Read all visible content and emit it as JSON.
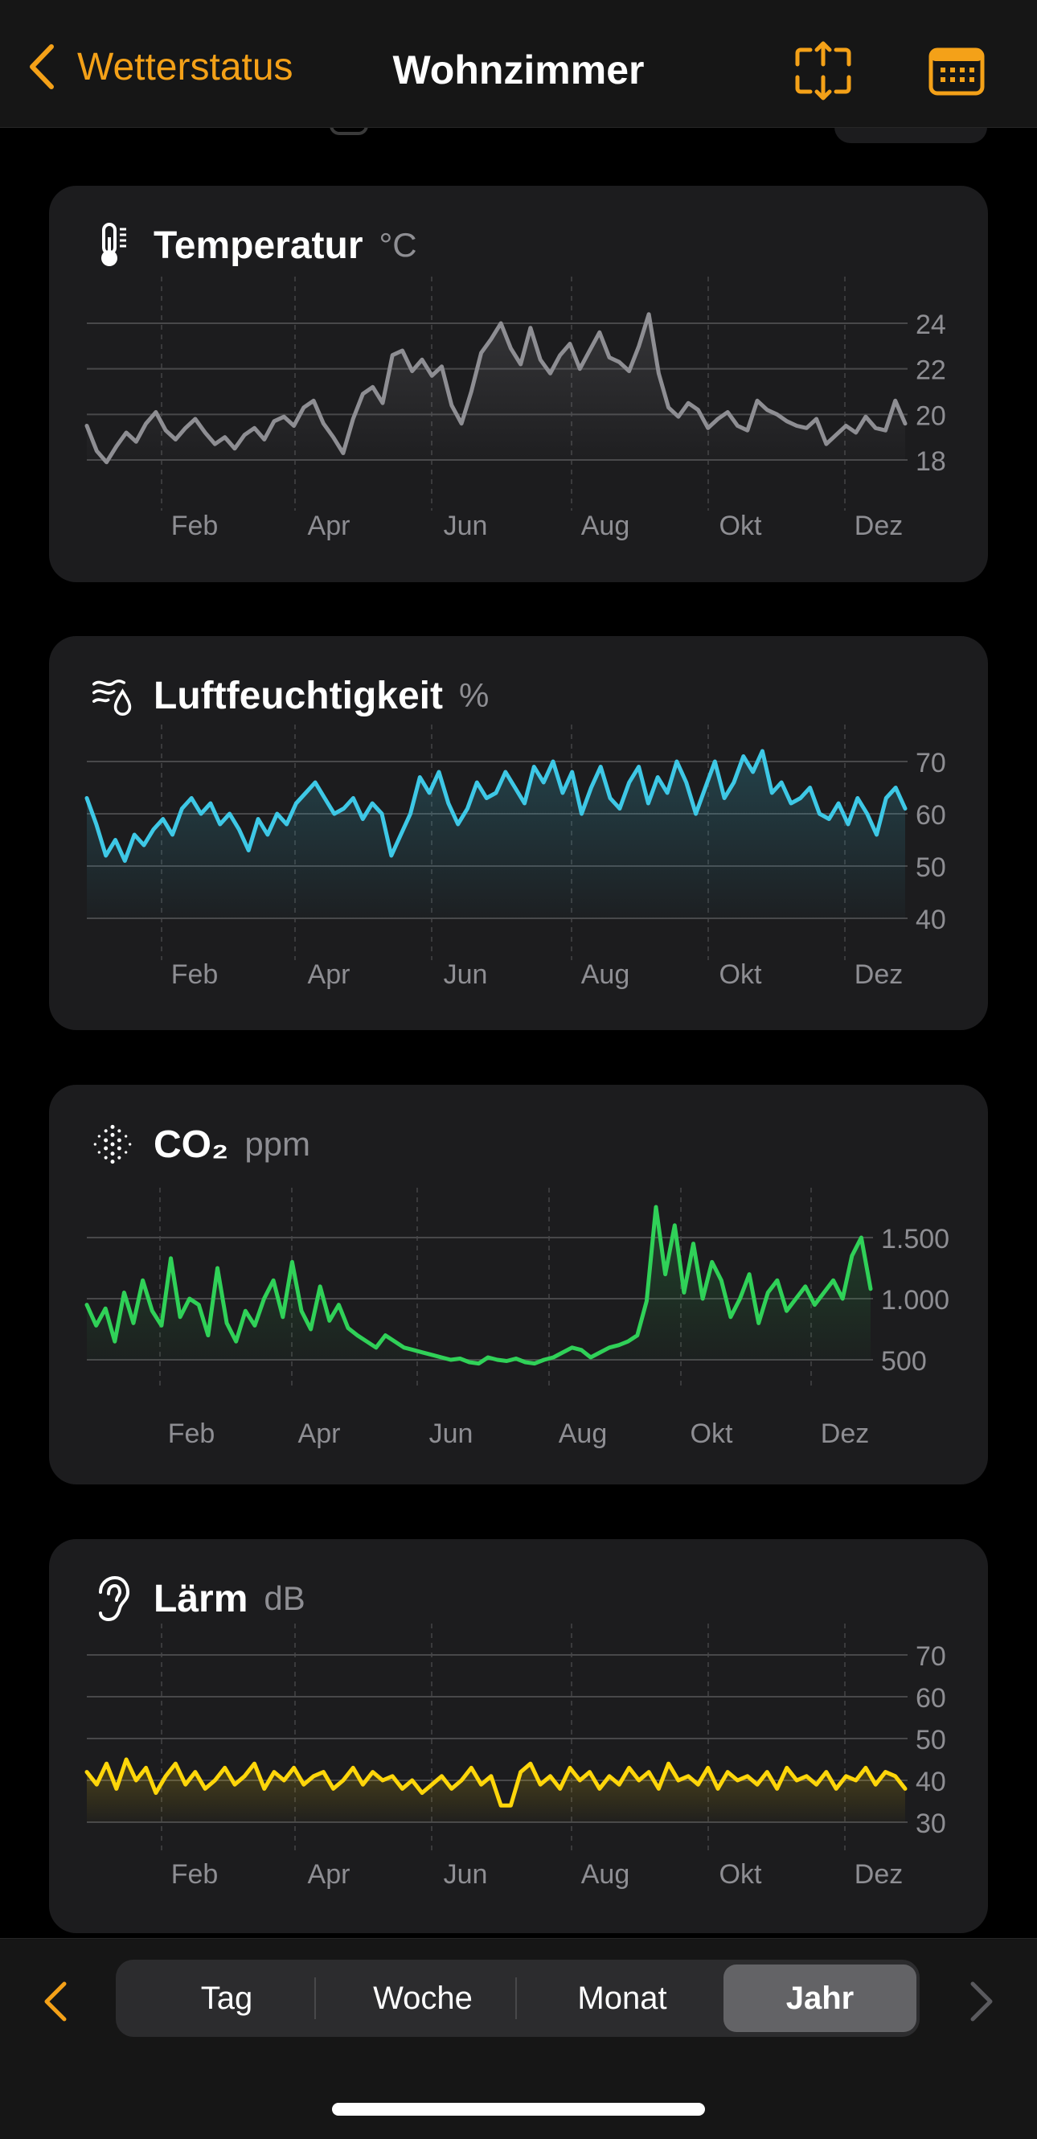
{
  "header": {
    "back_label": "Wetterstatus",
    "title": "Wohnzimmer",
    "accent": "#f4a118",
    "icons": [
      "chevron-left-icon",
      "expand-arrows-icon",
      "calendar-icon"
    ]
  },
  "cards": [
    {
      "title": "Temperatur",
      "unit": "°C",
      "icon": "thermometer-icon",
      "color": "#8e8e93",
      "chart_data": {
        "type": "line",
        "xlabels": [
          "Feb",
          "Apr",
          "Jun",
          "Aug",
          "Okt",
          "Dez"
        ],
        "yticks": [
          24,
          22,
          20,
          18
        ],
        "ylim": [
          17.5,
          24.5
        ],
        "series": [
          {
            "values": [
              19.5,
              18.4,
              17.9,
              18.6,
              19.2,
              18.8,
              19.6,
              20.1,
              19.3,
              18.9,
              19.4,
              19.8,
              19.2,
              18.7,
              19.0,
              18.5,
              19.1,
              19.4,
              18.9,
              19.7,
              19.9,
              19.5,
              20.3,
              20.6,
              19.6,
              19.0,
              18.3,
              19.8,
              20.9,
              21.2,
              20.5,
              22.6,
              22.8,
              21.9,
              22.4,
              21.7,
              22.1,
              20.4,
              19.6,
              21.0,
              22.7,
              23.3,
              24.0,
              22.9,
              22.2,
              23.8,
              22.4,
              21.8,
              22.6,
              23.1,
              22.0,
              22.8,
              23.6,
              22.5,
              22.3,
              21.9,
              23.0,
              24.4,
              21.8,
              20.3,
              19.9,
              20.5,
              20.2,
              19.4,
              19.8,
              20.1,
              19.5,
              19.3,
              20.6,
              20.2,
              20.0,
              19.7,
              19.5,
              19.4,
              19.8,
              18.7,
              19.1,
              19.5,
              19.2,
              19.9,
              19.4,
              19.3,
              20.6,
              19.6
            ]
          }
        ]
      }
    },
    {
      "title": "Luftfeuchtigkeit",
      "unit": "%",
      "icon": "humidity-icon",
      "color": "#3ec8e6",
      "chart_data": {
        "type": "line",
        "xlabels": [
          "Feb",
          "Apr",
          "Jun",
          "Aug",
          "Okt",
          "Dez"
        ],
        "yticks": [
          70,
          60,
          50,
          40
        ],
        "ylim": [
          38,
          72
        ],
        "series": [
          {
            "values": [
              63,
              58,
              52,
              55,
              51,
              56,
              54,
              57,
              59,
              56,
              61,
              63,
              60,
              62,
              58,
              60,
              57,
              53,
              59,
              56,
              60,
              58,
              62,
              64,
              66,
              63,
              60,
              61,
              63,
              59,
              62,
              60,
              52,
              56,
              60,
              67,
              64,
              68,
              62,
              58,
              61,
              66,
              63,
              64,
              68,
              65,
              62,
              69,
              66,
              70,
              64,
              68,
              60,
              65,
              69,
              63,
              61,
              66,
              69,
              62,
              67,
              64,
              70,
              66,
              60,
              65,
              70,
              63,
              66,
              71,
              68,
              72,
              64,
              66,
              62,
              63,
              65,
              60,
              59,
              62,
              58,
              63,
              60,
              56,
              63,
              65,
              61
            ]
          }
        ]
      }
    },
    {
      "title": "CO₂",
      "unit": "ppm",
      "icon": "co2-dots-icon",
      "color": "#30d158",
      "chart_data": {
        "type": "line",
        "xlabels": [
          "Feb",
          "Apr",
          "Jun",
          "Aug",
          "Okt",
          "Dez"
        ],
        "yticks": [
          1500,
          1000,
          500
        ],
        "yticklabels": [
          "1.500",
          "1.000",
          "500"
        ],
        "ylim": [
          300,
          1800
        ],
        "series": [
          {
            "values": [
              950,
              780,
              920,
              650,
              1050,
              800,
              1150,
              900,
              780,
              1330,
              850,
              1000,
              950,
              700,
              1250,
              800,
              650,
              900,
              780,
              1000,
              1150,
              850,
              1300,
              900,
              750,
              1100,
              820,
              950,
              760,
              700,
              650,
              600,
              700,
              650,
              600,
              580,
              560,
              540,
              520,
              500,
              510,
              480,
              470,
              520,
              500,
              490,
              510,
              480,
              470,
              500,
              520,
              560,
              600,
              580,
              520,
              560,
              600,
              620,
              650,
              700,
              980,
              1750,
              1200,
              1600,
              1050,
              1450,
              1000,
              1300,
              1150,
              850,
              1000,
              1200,
              800,
              1050,
              1150,
              900,
              1000,
              1100,
              950,
              1050,
              1150,
              1000,
              1350,
              1500,
              1080
            ]
          }
        ]
      }
    },
    {
      "title": "Lärm",
      "unit": "dB",
      "icon": "ear-icon",
      "color": "#ffd60a",
      "chart_data": {
        "type": "line",
        "xlabels": [
          "Feb",
          "Apr",
          "Jun",
          "Aug",
          "Okt",
          "Dez"
        ],
        "yticks": [
          70,
          60,
          50,
          40,
          30
        ],
        "ylim": [
          28,
          72
        ],
        "series": [
          {
            "values": [
              42,
              39,
              44,
              38,
              45,
              40,
              43,
              37,
              41,
              44,
              39,
              42,
              38,
              40,
              43,
              39,
              41,
              44,
              38,
              42,
              40,
              43,
              39,
              41,
              42,
              38,
              40,
              43,
              39,
              42,
              40,
              41,
              38,
              40,
              37,
              39,
              41,
              38,
              40,
              43,
              39,
              41,
              34,
              34,
              42,
              44,
              39,
              41,
              38,
              43,
              40,
              42,
              38,
              41,
              39,
              43,
              40,
              42,
              38,
              44,
              40,
              41,
              39,
              43,
              38,
              42,
              40,
              41,
              39,
              42,
              38,
              43,
              40,
              41,
              39,
              42,
              38,
              41,
              40,
              43,
              39,
              42,
              41,
              38
            ]
          }
        ]
      }
    }
  ],
  "segments": {
    "items": [
      "Tag",
      "Woche",
      "Monat",
      "Jahr"
    ],
    "active": "Jahr"
  }
}
